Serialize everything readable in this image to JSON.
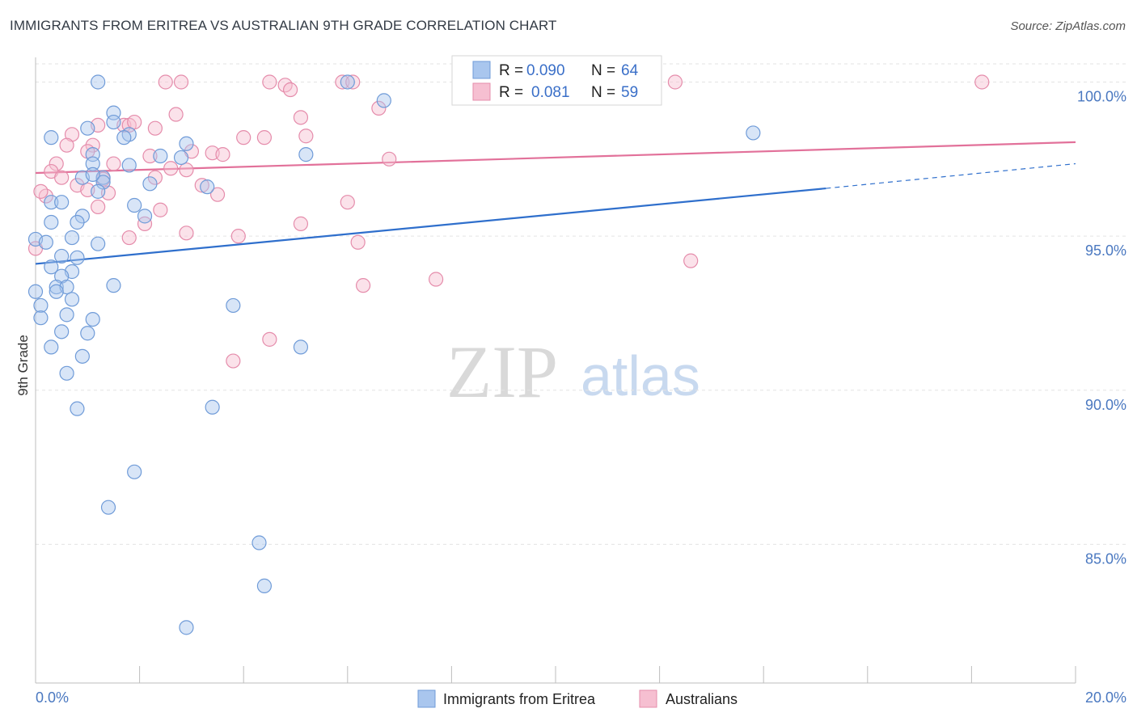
{
  "header": {
    "title": "IMMIGRANTS FROM ERITREA VS AUSTRALIAN 9TH GRADE CORRELATION CHART",
    "source": "Source: ZipAtlas.com"
  },
  "watermark": {
    "zip": "ZIP",
    "atlas": "atlas"
  },
  "legend_box": {
    "rows": [
      {
        "r_label": "R =",
        "r_value": "0.090",
        "n_label": "N =",
        "n_value": "64"
      },
      {
        "r_label": "R =",
        "r_value": "0.081",
        "n_label": "N =",
        "n_value": "59"
      }
    ]
  },
  "bottom_legend": {
    "series1": "Immigrants from Eritrea",
    "series2": "Australians"
  },
  "colors": {
    "blue_fill": "#a9c6ee",
    "blue_stroke": "#6f9bd8",
    "blue_line": "#2f6fcc",
    "pink_fill": "#f6bfd1",
    "pink_stroke": "#e58cab",
    "pink_line": "#e2719a",
    "tick_text": "#4a78c0"
  },
  "chart_data": {
    "type": "scatter",
    "title": "IMMIGRANTS FROM ERITREA VS AUSTRALIAN 9TH GRADE CORRELATION CHART",
    "xlabel": "",
    "ylabel": "9th Grade",
    "xlim": [
      0,
      20
    ],
    "ylim": [
      80.5,
      100.8
    ],
    "x_ticks": [
      "0.0%",
      "20.0%"
    ],
    "y_ticks": [
      {
        "value": 100,
        "label": "100.0%"
      },
      {
        "value": 95,
        "label": "95.0%"
      },
      {
        "value": 90,
        "label": "90.0%"
      },
      {
        "value": 85,
        "label": "85.0%"
      }
    ],
    "grid": true,
    "legend_position": "top-center",
    "series": [
      {
        "name": "Immigrants from Eritrea",
        "R": 0.09,
        "N": 64,
        "trend": {
          "x0": 0,
          "y0": 94.1,
          "x1": 15.2,
          "y1": 96.55,
          "dash_to_x": 20,
          "dash_to_y": 97.35
        },
        "points": [
          [
            1.2,
            100.0
          ],
          [
            6.0,
            100.0
          ],
          [
            6.7,
            99.4
          ],
          [
            1.5,
            99.0
          ],
          [
            1.5,
            98.7
          ],
          [
            1.8,
            98.3
          ],
          [
            1.0,
            98.5
          ],
          [
            13.8,
            98.35
          ],
          [
            2.9,
            98.0
          ],
          [
            1.1,
            97.65
          ],
          [
            1.1,
            97.35
          ],
          [
            2.4,
            97.6
          ],
          [
            2.8,
            97.55
          ],
          [
            5.2,
            97.65
          ],
          [
            1.8,
            97.3
          ],
          [
            1.3,
            96.9
          ],
          [
            0.9,
            96.9
          ],
          [
            1.3,
            96.75
          ],
          [
            2.2,
            96.7
          ],
          [
            3.3,
            96.6
          ],
          [
            1.2,
            96.45
          ],
          [
            0.3,
            96.1
          ],
          [
            0.5,
            96.1
          ],
          [
            1.9,
            96.0
          ],
          [
            0.9,
            95.65
          ],
          [
            2.1,
            95.65
          ],
          [
            0.3,
            95.45
          ],
          [
            0.8,
            95.45
          ],
          [
            0.0,
            94.9
          ],
          [
            0.2,
            94.8
          ],
          [
            0.7,
            94.95
          ],
          [
            1.2,
            94.75
          ],
          [
            0.5,
            94.35
          ],
          [
            0.8,
            94.3
          ],
          [
            0.3,
            94.0
          ],
          [
            0.7,
            93.85
          ],
          [
            0.5,
            93.7
          ],
          [
            1.5,
            93.4
          ],
          [
            0.4,
            93.35
          ],
          [
            0.6,
            93.35
          ],
          [
            0.4,
            93.2
          ],
          [
            0.0,
            93.2
          ],
          [
            0.7,
            92.95
          ],
          [
            0.1,
            92.75
          ],
          [
            3.8,
            92.75
          ],
          [
            0.6,
            92.45
          ],
          [
            0.1,
            92.35
          ],
          [
            1.1,
            92.3
          ],
          [
            0.5,
            91.9
          ],
          [
            1.0,
            91.85
          ],
          [
            0.3,
            91.4
          ],
          [
            5.1,
            91.4
          ],
          [
            0.9,
            91.1
          ],
          [
            0.6,
            90.55
          ],
          [
            0.8,
            89.4
          ],
          [
            3.4,
            89.45
          ],
          [
            1.9,
            87.35
          ],
          [
            1.4,
            86.2
          ],
          [
            4.3,
            85.05
          ],
          [
            4.4,
            83.65
          ],
          [
            2.9,
            82.3
          ],
          [
            0.3,
            98.2
          ],
          [
            1.7,
            98.2
          ],
          [
            1.1,
            97.0
          ]
        ]
      },
      {
        "name": "Australians",
        "R": 0.081,
        "N": 59,
        "trend": {
          "x0": 0,
          "y0": 97.05,
          "x1": 20,
          "y1": 98.05
        },
        "points": [
          [
            2.5,
            100.0
          ],
          [
            2.8,
            100.0
          ],
          [
            4.5,
            100.0
          ],
          [
            5.9,
            100.0
          ],
          [
            6.1,
            100.0
          ],
          [
            12.3,
            100.0
          ],
          [
            18.2,
            100.0
          ],
          [
            4.8,
            99.9
          ],
          [
            4.9,
            99.75
          ],
          [
            6.6,
            99.15
          ],
          [
            2.7,
            98.95
          ],
          [
            5.1,
            98.85
          ],
          [
            1.2,
            98.6
          ],
          [
            1.7,
            98.6
          ],
          [
            1.8,
            98.6
          ],
          [
            1.9,
            98.7
          ],
          [
            2.3,
            98.5
          ],
          [
            0.7,
            98.3
          ],
          [
            4.0,
            98.2
          ],
          [
            4.4,
            98.2
          ],
          [
            5.2,
            98.25
          ],
          [
            0.6,
            97.95
          ],
          [
            1.1,
            97.95
          ],
          [
            1.0,
            97.75
          ],
          [
            3.0,
            97.75
          ],
          [
            3.4,
            97.7
          ],
          [
            3.6,
            97.65
          ],
          [
            2.2,
            97.6
          ],
          [
            6.8,
            97.5
          ],
          [
            0.4,
            97.35
          ],
          [
            1.5,
            97.35
          ],
          [
            2.6,
            97.2
          ],
          [
            2.9,
            97.15
          ],
          [
            0.3,
            97.1
          ],
          [
            0.5,
            96.9
          ],
          [
            1.3,
            96.85
          ],
          [
            0.8,
            96.65
          ],
          [
            3.2,
            96.65
          ],
          [
            1.0,
            96.5
          ],
          [
            1.4,
            96.4
          ],
          [
            3.5,
            96.35
          ],
          [
            0.2,
            96.3
          ],
          [
            6.0,
            96.1
          ],
          [
            1.2,
            95.95
          ],
          [
            2.4,
            95.85
          ],
          [
            2.1,
            95.4
          ],
          [
            5.1,
            95.4
          ],
          [
            2.9,
            95.1
          ],
          [
            3.9,
            95.0
          ],
          [
            1.8,
            94.95
          ],
          [
            6.2,
            94.8
          ],
          [
            0.0,
            94.6
          ],
          [
            12.6,
            94.2
          ],
          [
            7.7,
            93.6
          ],
          [
            6.3,
            93.4
          ],
          [
            4.5,
            91.65
          ],
          [
            3.8,
            90.95
          ],
          [
            0.1,
            96.45
          ],
          [
            2.3,
            96.9
          ]
        ]
      }
    ]
  }
}
